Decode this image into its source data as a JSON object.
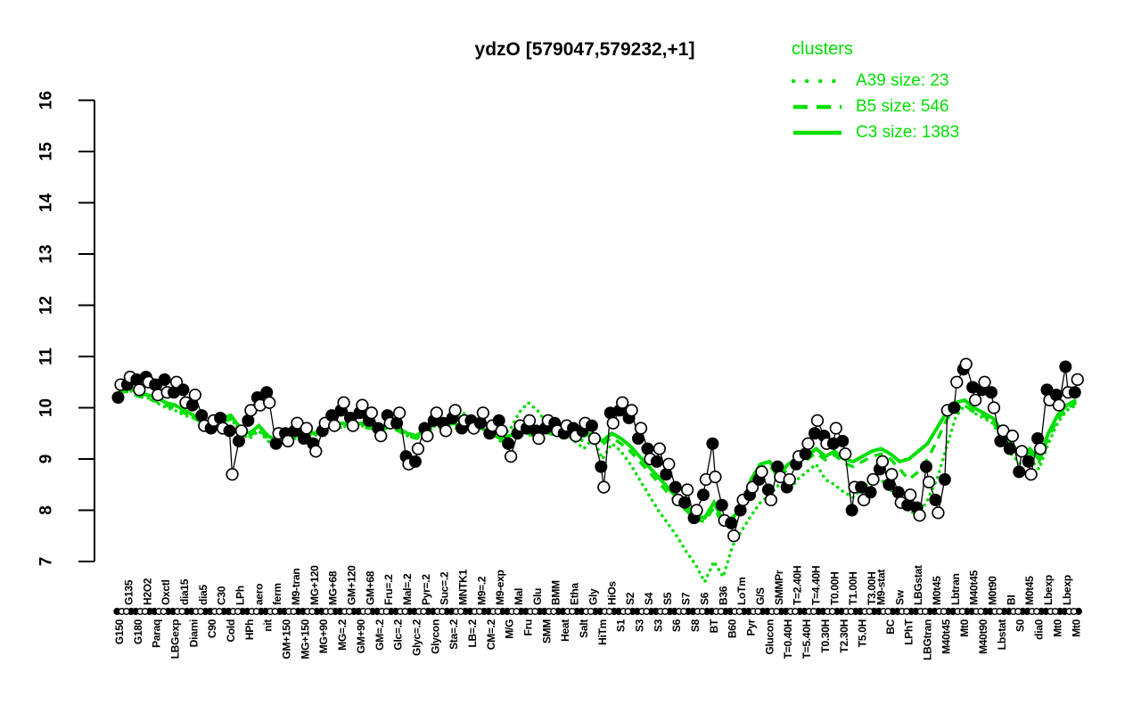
{
  "colors": {
    "cluster_green": "#00DF00",
    "points_black": "#000000",
    "background": "#FFFFFF"
  },
  "chart_data": {
    "type": "line",
    "title": "ydzO [579047,579232,+1]",
    "xlabel": "",
    "ylabel": "",
    "ylim": [
      7,
      16
    ],
    "grid": false,
    "legend": {
      "title": "clusters",
      "position": "top-right",
      "entries": [
        {
          "name": "A39",
          "size": 23,
          "label": "A39 size: 23",
          "style": "dotted"
        },
        {
          "name": "B5",
          "size": 546,
          "label": "B5 size: 546",
          "style": "dashed"
        },
        {
          "name": "C3",
          "size": 1383,
          "label": "C3 size: 1383",
          "style": "solid"
        }
      ]
    },
    "y_axis": {
      "min": 7,
      "max": 16,
      "ticks": [
        7,
        8,
        9,
        10,
        11,
        12,
        13,
        14,
        15,
        16
      ]
    },
    "conditions": [
      {
        "label": "G150",
        "row": "b"
      },
      {
        "label": "G135",
        "row": "t"
      },
      {
        "label": "G180",
        "row": "b"
      },
      {
        "label": "H2O2",
        "row": "t"
      },
      {
        "label": "Paraq",
        "row": "b"
      },
      {
        "label": "Oxctl",
        "row": "t"
      },
      {
        "label": "LBGexp",
        "row": "b"
      },
      {
        "label": "dia15",
        "row": "t"
      },
      {
        "label": "Diami",
        "row": "b"
      },
      {
        "label": "dia5",
        "row": "t"
      },
      {
        "label": "C90",
        "row": "b"
      },
      {
        "label": "C30",
        "row": "t"
      },
      {
        "label": "Cold",
        "row": "b"
      },
      {
        "label": "LPh",
        "row": "t"
      },
      {
        "label": "HPh",
        "row": "b"
      },
      {
        "label": "aero",
        "row": "t"
      },
      {
        "label": "nit",
        "row": "b"
      },
      {
        "label": "ferm",
        "row": "t"
      },
      {
        "label": "GM+150",
        "row": "b"
      },
      {
        "label": "M9-tran",
        "row": "t"
      },
      {
        "label": "MG+150",
        "row": "b"
      },
      {
        "label": "MG+120",
        "row": "t"
      },
      {
        "label": "MG+90",
        "row": "b"
      },
      {
        "label": "MG+68",
        "row": "t"
      },
      {
        "label": "MG=.2",
        "row": "b"
      },
      {
        "label": "GM+120",
        "row": "t"
      },
      {
        "label": "GM+90",
        "row": "b"
      },
      {
        "label": "GM+68",
        "row": "t"
      },
      {
        "label": "GM=.2",
        "row": "b"
      },
      {
        "label": "Fru=.2",
        "row": "t"
      },
      {
        "label": "Glc=.2",
        "row": "b"
      },
      {
        "label": "Mal=.2",
        "row": "t"
      },
      {
        "label": "Glyc=.2",
        "row": "b"
      },
      {
        "label": "Pyr=.2",
        "row": "t"
      },
      {
        "label": "Glycon",
        "row": "b"
      },
      {
        "label": "Suc=.2",
        "row": "t"
      },
      {
        "label": "Sta=.2",
        "row": "b"
      },
      {
        "label": "MNTK1",
        "row": "t"
      },
      {
        "label": "LB=.2",
        "row": "b"
      },
      {
        "label": "M9=.2",
        "row": "t"
      },
      {
        "label": "CM=.2",
        "row": "b"
      },
      {
        "label": "M9-exp",
        "row": "t"
      },
      {
        "label": "M/G",
        "row": "b"
      },
      {
        "label": "Mal",
        "row": "t"
      },
      {
        "label": "Fru",
        "row": "b"
      },
      {
        "label": "Glu",
        "row": "t"
      },
      {
        "label": "SMM",
        "row": "b"
      },
      {
        "label": "BMM",
        "row": "t"
      },
      {
        "label": "Heat",
        "row": "b"
      },
      {
        "label": "Etha",
        "row": "t"
      },
      {
        "label": "Salt",
        "row": "b"
      },
      {
        "label": "Gly",
        "row": "t"
      },
      {
        "label": "HiTm",
        "row": "b"
      },
      {
        "label": "HiOs",
        "row": "t"
      },
      {
        "label": "S1",
        "row": "b"
      },
      {
        "label": "S2",
        "row": "t"
      },
      {
        "label": "S3",
        "row": "b"
      },
      {
        "label": "S4",
        "row": "t"
      },
      {
        "label": "S3",
        "row": "b"
      },
      {
        "label": "S5",
        "row": "t"
      },
      {
        "label": "S6",
        "row": "b"
      },
      {
        "label": "S7",
        "row": "t"
      },
      {
        "label": "S8",
        "row": "b"
      },
      {
        "label": "S6",
        "row": "t"
      },
      {
        "label": "BT",
        "row": "b"
      },
      {
        "label": "B36",
        "row": "t"
      },
      {
        "label": "B60",
        "row": "b"
      },
      {
        "label": "LoTm",
        "row": "t"
      },
      {
        "label": "Pyr",
        "row": "b"
      },
      {
        "label": "G/S",
        "row": "t"
      },
      {
        "label": "Glucon",
        "row": "b"
      },
      {
        "label": "SMMPr",
        "row": "t"
      },
      {
        "label": "T=0.40H",
        "row": "b"
      },
      {
        "label": "T=2.40H",
        "row": "t"
      },
      {
        "label": "T=5.40H",
        "row": "b"
      },
      {
        "label": "T=4.40H",
        "row": "t"
      },
      {
        "label": "T0.30H",
        "row": "b"
      },
      {
        "label": "T0.00H",
        "row": "t"
      },
      {
        "label": "T2.30H",
        "row": "b"
      },
      {
        "label": "T1.00H",
        "row": "t"
      },
      {
        "label": "T5.0H",
        "row": "b"
      },
      {
        "label": "T3.00H",
        "row": "t"
      },
      {
        "label": "M9-stat",
        "row": "t"
      },
      {
        "label": "BC",
        "row": "b"
      },
      {
        "label": "Sw",
        "row": "t"
      },
      {
        "label": "LPhT",
        "row": "b"
      },
      {
        "label": "LBGstat",
        "row": "t"
      },
      {
        "label": "LBGtran",
        "row": "b"
      },
      {
        "label": "M0t45",
        "row": "t"
      },
      {
        "label": "M40t45",
        "row": "b"
      },
      {
        "label": "Lbtran",
        "row": "t"
      },
      {
        "label": "Mt0",
        "row": "b"
      },
      {
        "label": "M40t45",
        "row": "t"
      },
      {
        "label": "M40t90",
        "row": "b"
      },
      {
        "label": "M0t90",
        "row": "t"
      },
      {
        "label": "Lbstat",
        "row": "b"
      },
      {
        "label": "BI",
        "row": "t"
      },
      {
        "label": "S0",
        "row": "b"
      },
      {
        "label": "M0t45",
        "row": "t"
      },
      {
        "label": "dia0",
        "row": "b"
      },
      {
        "label": "Lbexp",
        "row": "t"
      },
      {
        "label": "Mt0",
        "row": "b"
      },
      {
        "label": "Lbexp",
        "row": "t"
      },
      {
        "label": "Mt0",
        "row": "b"
      }
    ],
    "series": [
      {
        "name": "gene expression (filled replicate)",
        "marker": "filled-circle",
        "color": "#000000",
        "values": [
          10.2,
          10.45,
          10.55,
          10.6,
          10.45,
          10.55,
          10.3,
          10.35,
          10.05,
          9.85,
          9.6,
          9.8,
          9.55,
          9.35,
          9.75,
          10.2,
          10.3,
          9.3,
          9.5,
          9.55,
          9.4,
          9.3,
          9.55,
          9.85,
          9.95,
          9.8,
          9.9,
          9.75,
          9.6,
          9.85,
          9.7,
          9.05,
          8.95,
          9.6,
          9.75,
          9.7,
          9.8,
          9.6,
          9.75,
          9.7,
          9.5,
          9.75,
          9.3,
          9.5,
          9.6,
          9.55,
          9.6,
          9.7,
          9.5,
          9.6,
          9.55,
          9.65,
          8.85,
          9.9,
          9.95,
          9.8,
          9.4,
          9.2,
          8.95,
          8.7,
          8.45,
          8.15,
          7.85,
          8.3,
          9.3,
          8.1,
          7.75,
          8.0,
          8.3,
          8.6,
          8.4,
          8.85,
          8.45,
          8.9,
          9.1,
          9.5,
          9.45,
          9.3,
          9.35,
          8.0,
          8.45,
          8.35,
          8.8,
          8.5,
          8.35,
          8.1,
          8.05,
          8.85,
          8.2,
          8.6,
          10.0,
          10.75,
          10.4,
          10.35,
          10.3,
          9.35,
          9.2,
          8.75,
          8.95,
          9.4,
          10.35,
          10.25,
          10.8,
          10.3
        ]
      },
      {
        "name": "gene expression (open replicate)",
        "marker": "open-circle",
        "color": "#000000",
        "values": [
          10.45,
          10.6,
          10.35,
          10.5,
          10.25,
          10.3,
          10.5,
          10.1,
          10.25,
          9.65,
          9.75,
          9.6,
          8.7,
          9.55,
          9.95,
          10.05,
          10.1,
          9.5,
          9.35,
          9.7,
          9.6,
          9.15,
          9.7,
          9.65,
          10.1,
          9.65,
          10.05,
          9.9,
          9.45,
          9.7,
          9.9,
          8.9,
          9.2,
          9.45,
          9.9,
          9.55,
          9.95,
          9.75,
          9.6,
          9.9,
          9.65,
          9.55,
          9.05,
          9.65,
          9.75,
          9.4,
          9.75,
          9.55,
          9.65,
          9.45,
          9.7,
          9.4,
          8.45,
          9.7,
          10.1,
          9.95,
          9.6,
          9.0,
          9.2,
          8.9,
          8.2,
          8.4,
          8.0,
          8.6,
          8.65,
          7.8,
          7.5,
          8.2,
          8.45,
          8.75,
          8.2,
          8.65,
          8.6,
          9.05,
          9.3,
          9.75,
          9.3,
          9.6,
          9.1,
          8.45,
          8.2,
          8.6,
          8.95,
          8.7,
          8.15,
          8.3,
          7.9,
          8.55,
          7.95,
          9.95,
          10.5,
          10.85,
          10.15,
          10.5,
          10.0,
          9.55,
          9.45,
          9.15,
          8.7,
          9.2,
          10.15,
          10.05,
          10.3,
          10.55
        ]
      },
      {
        "name": "C3",
        "cluster_size": 1383,
        "style": "solid",
        "color": "#00DF00",
        "values": [
          10.35,
          10.4,
          10.3,
          10.25,
          10.2,
          10.1,
          10.05,
          9.95,
          9.85,
          9.75,
          9.7,
          9.8,
          9.85,
          9.6,
          9.5,
          9.65,
          9.45,
          9.35,
          9.5,
          9.45,
          9.55,
          9.5,
          9.6,
          9.65,
          9.7,
          9.65,
          9.7,
          9.65,
          9.6,
          9.7,
          9.6,
          9.5,
          9.45,
          9.6,
          9.7,
          9.65,
          9.7,
          9.6,
          9.65,
          9.6,
          9.5,
          9.4,
          9.45,
          9.55,
          9.5,
          9.55,
          9.6,
          9.5,
          9.55,
          9.5,
          9.45,
          9.5,
          9.35,
          9.5,
          9.4,
          9.25,
          9.05,
          8.85,
          8.65,
          8.45,
          8.25,
          8.1,
          7.9,
          7.85,
          8.15,
          7.8,
          7.85,
          8.05,
          8.6,
          8.9,
          8.95,
          8.7,
          8.9,
          9.0,
          9.05,
          9.2,
          9.05,
          9.15,
          9.0,
          8.95,
          9.05,
          9.15,
          9.2,
          9.1,
          8.95,
          9.0,
          9.15,
          9.3,
          9.6,
          9.9,
          10.1,
          10.15,
          10.0,
          9.9,
          9.8,
          9.55,
          9.3,
          9.1,
          9.2,
          9.0,
          9.5,
          9.85,
          10.05,
          10.15
        ]
      },
      {
        "name": "B5",
        "cluster_size": 546,
        "style": "dashed",
        "color": "#00DF00",
        "values": [
          10.3,
          10.32,
          10.22,
          10.18,
          10.12,
          10.05,
          9.98,
          9.9,
          9.8,
          9.7,
          9.65,
          9.72,
          9.78,
          9.55,
          9.45,
          9.58,
          9.4,
          9.3,
          9.42,
          9.4,
          9.48,
          9.45,
          9.52,
          9.58,
          9.62,
          9.6,
          9.62,
          9.6,
          9.55,
          9.62,
          9.55,
          9.45,
          9.4,
          9.52,
          9.62,
          9.6,
          9.62,
          9.55,
          9.6,
          9.55,
          9.45,
          9.35,
          9.4,
          9.5,
          9.45,
          9.5,
          9.52,
          9.45,
          9.5,
          9.42,
          9.35,
          9.42,
          9.28,
          9.42,
          9.3,
          9.15,
          8.95,
          8.75,
          8.55,
          8.35,
          8.15,
          8.0,
          7.82,
          7.78,
          8.05,
          7.72,
          7.78,
          7.98,
          8.52,
          8.82,
          8.88,
          8.62,
          8.82,
          8.92,
          8.98,
          9.12,
          8.98,
          9.08,
          8.92,
          8.85,
          8.95,
          9.05,
          9.1,
          9.0,
          8.8,
          8.6,
          8.75,
          9.0,
          9.35,
          9.75,
          10.0,
          10.05,
          9.92,
          9.85,
          9.72,
          9.48,
          9.22,
          9.05,
          9.12,
          8.95,
          9.42,
          9.78,
          9.98,
          10.1
        ]
      },
      {
        "name": "A39",
        "cluster_size": 23,
        "style": "dotted",
        "color": "#00DF00",
        "values": [
          10.3,
          10.35,
          10.25,
          10.2,
          10.1,
          10.0,
          9.95,
          9.85,
          9.8,
          9.7,
          9.6,
          9.7,
          9.8,
          9.5,
          9.4,
          9.55,
          9.35,
          9.25,
          9.45,
          9.4,
          9.5,
          9.45,
          9.55,
          9.6,
          9.65,
          9.6,
          9.65,
          9.6,
          9.55,
          9.65,
          9.55,
          9.45,
          9.4,
          9.55,
          9.65,
          9.6,
          9.8,
          9.9,
          9.75,
          9.7,
          9.6,
          9.5,
          9.55,
          9.9,
          10.1,
          9.95,
          9.7,
          9.6,
          9.5,
          9.35,
          9.2,
          9.4,
          9.0,
          9.3,
          9.15,
          8.9,
          8.6,
          8.3,
          8.0,
          7.75,
          7.5,
          7.2,
          6.95,
          6.6,
          7.0,
          6.7,
          7.3,
          7.6,
          7.9,
          8.15,
          8.3,
          8.5,
          8.35,
          8.6,
          8.75,
          8.9,
          8.6,
          8.5,
          8.35,
          8.25,
          8.45,
          8.55,
          8.6,
          8.4,
          8.2,
          8.0,
          7.9,
          8.2,
          8.6,
          9.2,
          9.8,
          10.05,
          9.9,
          9.8,
          9.7,
          9.4,
          9.1,
          8.9,
          9.0,
          8.8,
          9.3,
          9.7,
          9.95,
          10.05
        ]
      }
    ]
  }
}
